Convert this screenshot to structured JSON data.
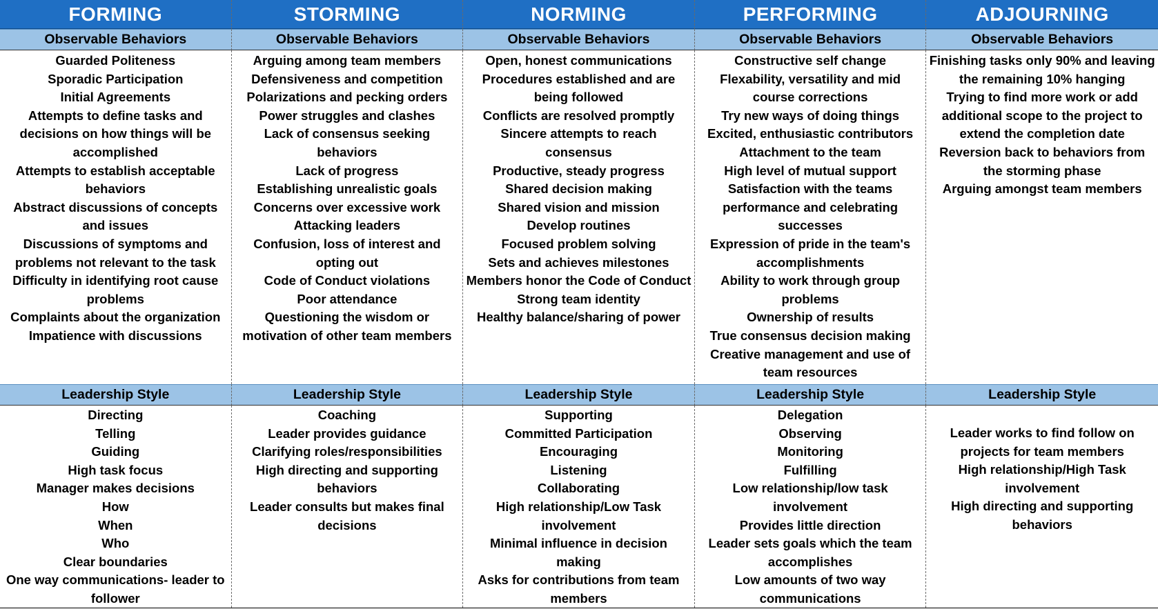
{
  "columns": [
    {
      "stage": "FORMING",
      "behaviors_header": "Observable Behaviors",
      "behaviors": [
        "Guarded Politeness",
        "Sporadic Participation",
        "Initial Agreements",
        "Attempts to define tasks and decisions on how things will be accomplished",
        "Attempts to establish acceptable behaviors",
        "Abstract discussions of concepts and issues",
        "Discussions of symptoms and problems not relevant to the task",
        "Difficulty in identifying root cause problems",
        "Complaints about the organization",
        "Impatience with discussions"
      ],
      "leadership_header": "Leadership Style",
      "leadership": [
        "Directing",
        "Telling",
        "Guiding",
        "High task focus",
        "Manager makes decisions",
        "How",
        "When",
        "Who",
        "Clear boundaries",
        "One way communications- leader to follower"
      ]
    },
    {
      "stage": "STORMING",
      "behaviors_header": "Observable Behaviors",
      "behaviors": [
        "Arguing  among team members",
        "Defensiveness and competition",
        "Polarizations and pecking orders",
        "Power struggles and clashes",
        "Lack of consensus seeking behaviors",
        "Lack of progress",
        "Establishing unrealistic goals",
        "Concerns over excessive work",
        "Attacking leaders",
        "Confusion, loss of interest and opting out",
        "Code of Conduct violations",
        "Poor attendance",
        "Questioning the wisdom or motivation of other team members"
      ],
      "leadership_header": "Leadership Style",
      "leadership": [
        "Coaching",
        "Leader provides guidance",
        "Clarifying roles/responsibilities",
        "High directing and supporting behaviors",
        "Leader consults but makes final decisions"
      ]
    },
    {
      "stage": "NORMING",
      "behaviors_header": "Observable Behaviors",
      "behaviors": [
        "Open, honest communications",
        "Procedures established and are being followed",
        "Conflicts are resolved promptly",
        "Sincere attempts to reach consensus",
        "Productive, steady progress",
        "Shared decision making",
        "Shared vision and mission",
        "Develop routines",
        "Focused problem solving",
        "Sets and achieves milestones",
        "Members honor the Code of Conduct",
        "Strong team identity",
        "Healthy balance/sharing of power"
      ],
      "leadership_header": "Leadership Style",
      "leadership": [
        "Supporting",
        "Committed Participation",
        "Encouraging",
        "Listening",
        "Collaborating",
        "High relationship/Low Task involvement",
        "Minimal influence in decision making",
        "Asks for contributions from team members"
      ]
    },
    {
      "stage": "PERFORMING",
      "behaviors_header": "Observable Behaviors",
      "behaviors": [
        "Constructive self change",
        "Flexability, versatility and mid course corrections",
        "Try new ways of doing things",
        "Excited, enthusiastic contributors",
        "Attachment to the team",
        "High level of mutual support",
        "Satisfaction with the teams performance and celebrating successes",
        "Expression of pride in the team's accomplishments",
        "Ability to work through group problems",
        "Ownership of results",
        "True consensus decision making",
        "Creative management and use of team resources"
      ],
      "leadership_header": "Leadership Style",
      "leadership": [
        "Delegation",
        "Observing",
        "Monitoring",
        "Fulfilling",
        "Low relationship/low task involvement",
        "Provides little direction",
        "Leader sets goals which the team accomplishes",
        "Low amounts of two way communications"
      ]
    },
    {
      "stage": "ADJOURNING",
      "behaviors_header": "Observable Behaviors",
      "behaviors": [
        "Finishing tasks only 90% and leaving the remaining 10% hanging",
        "Trying to find more work or add additional scope to the project to extend the completion date",
        "Reversion back to behaviors from the storming phase",
        "Arguing amongst team members"
      ],
      "leadership_header": "Leadership Style",
      "leadership": [
        "Leader works to find follow on projects for team members",
        "High relationship/High Task involvement",
        "High directing and supporting behaviors"
      ]
    }
  ],
  "colors": {
    "stage_header_bg": "#1f6fc4",
    "sub_header_bg": "#9cc3e6",
    "text": "#000000"
  }
}
